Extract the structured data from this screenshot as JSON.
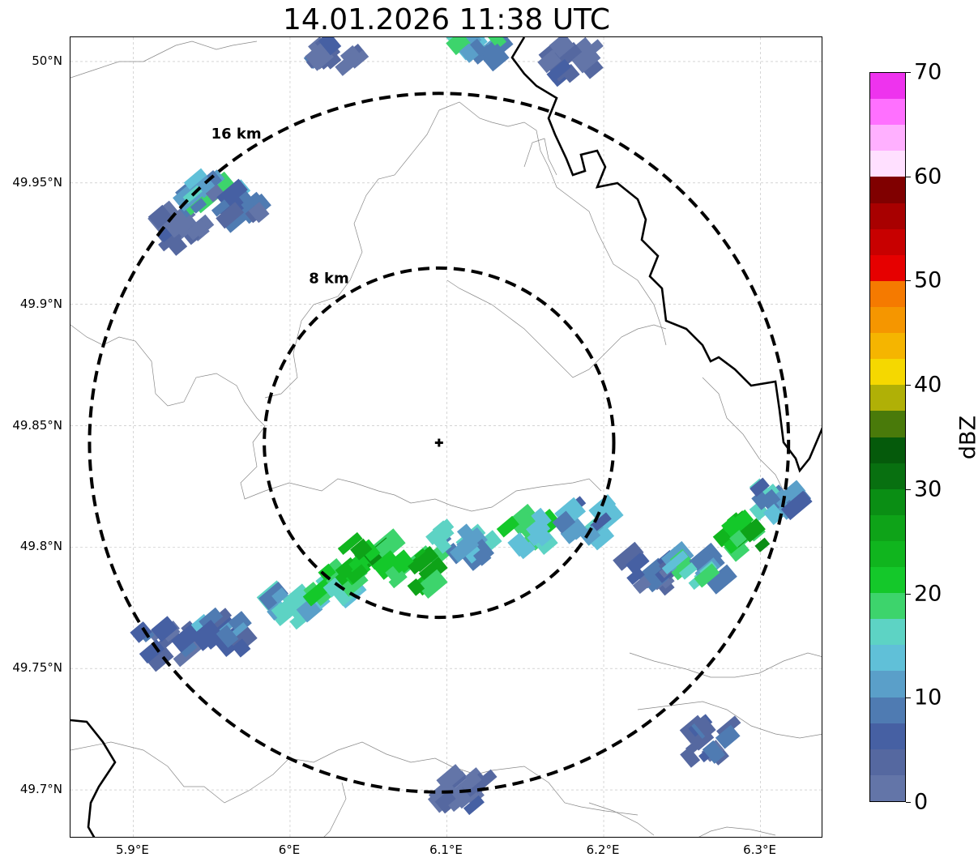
{
  "title": "14.01.2026 11:38 UTC",
  "map": {
    "lon_range": [
      5.86,
      6.34
    ],
    "lat_range": [
      49.68,
      50.01
    ],
    "center": {
      "lon": 6.095,
      "lat": 49.843
    },
    "rings": [
      {
        "label": "8 km",
        "radius_km": 8
      },
      {
        "label": "16 km",
        "radius_km": 16
      }
    ],
    "grid": true,
    "lon_ticks": [
      {
        "value": 5.9,
        "label": "5.9°E"
      },
      {
        "value": 6.0,
        "label": "6°E"
      },
      {
        "value": 6.1,
        "label": "6.1°E"
      },
      {
        "value": 6.2,
        "label": "6.2°E"
      },
      {
        "value": 6.3,
        "label": "6.3°E"
      }
    ],
    "lat_ticks": [
      {
        "value": 50.0,
        "label": "50°N"
      },
      {
        "value": 49.95,
        "label": "49.95°N"
      },
      {
        "value": 49.9,
        "label": "49.9°N"
      },
      {
        "value": 49.85,
        "label": "49.85°N"
      },
      {
        "value": 49.8,
        "label": "49.8°N"
      },
      {
        "value": 49.75,
        "label": "49.75°N"
      },
      {
        "value": 49.7,
        "label": "49.7°N"
      }
    ]
  },
  "colorbar": {
    "label": "dBZ",
    "vmin": 0,
    "vmax": 70,
    "ticks": [
      {
        "value": 0,
        "label": "0"
      },
      {
        "value": 10,
        "label": "10"
      },
      {
        "value": 20,
        "label": "20"
      },
      {
        "value": 30,
        "label": "30"
      },
      {
        "value": 40,
        "label": "40"
      },
      {
        "value": 50,
        "label": "50"
      },
      {
        "value": 60,
        "label": "60"
      },
      {
        "value": 70,
        "label": "70"
      }
    ],
    "colors": [
      "#6375a8",
      "#5568a0",
      "#4660a3",
      "#4f7bb2",
      "#5a9fc9",
      "#60c0d8",
      "#5dd3c4",
      "#3dd46c",
      "#14c82a",
      "#10b51e",
      "#0ea318",
      "#0a8e14",
      "#087010",
      "#055a0b",
      "#497a0a",
      "#b0b006",
      "#f5d800",
      "#f5b500",
      "#f59600",
      "#f57a00",
      "#e60000",
      "#c80000",
      "#a80000",
      "#800000",
      "#ffe0ff",
      "#ffb0ff",
      "#ff70ff",
      "#ee33ee"
    ]
  },
  "echo_cells": [
    {
      "lon": 5.93,
      "lat": 49.93,
      "dbz": 4
    },
    {
      "lon": 5.95,
      "lat": 49.945,
      "dbz": 15
    },
    {
      "lon": 5.965,
      "lat": 49.94,
      "dbz": 6
    },
    {
      "lon": 6.03,
      "lat": 50.005,
      "dbz": 5
    },
    {
      "lon": 6.12,
      "lat": 50.005,
      "dbz": 14
    },
    {
      "lon": 6.18,
      "lat": 50.0,
      "dbz": 5
    },
    {
      "lon": 5.92,
      "lat": 49.76,
      "dbz": 5
    },
    {
      "lon": 5.96,
      "lat": 49.765,
      "dbz": 9
    },
    {
      "lon": 6.0,
      "lat": 49.775,
      "dbz": 14
    },
    {
      "lon": 6.03,
      "lat": 49.785,
      "dbz": 20
    },
    {
      "lon": 6.05,
      "lat": 49.795,
      "dbz": 24
    },
    {
      "lon": 6.08,
      "lat": 49.79,
      "dbz": 22
    },
    {
      "lon": 6.11,
      "lat": 49.8,
      "dbz": 14
    },
    {
      "lon": 6.15,
      "lat": 49.805,
      "dbz": 18
    },
    {
      "lon": 6.19,
      "lat": 49.81,
      "dbz": 12
    },
    {
      "lon": 6.23,
      "lat": 49.79,
      "dbz": 6
    },
    {
      "lon": 6.26,
      "lat": 49.79,
      "dbz": 15
    },
    {
      "lon": 6.29,
      "lat": 49.805,
      "dbz": 24
    },
    {
      "lon": 6.31,
      "lat": 49.82,
      "dbz": 12
    },
    {
      "lon": 6.27,
      "lat": 49.72,
      "dbz": 4
    },
    {
      "lon": 6.11,
      "lat": 49.7,
      "dbz": 3
    }
  ]
}
